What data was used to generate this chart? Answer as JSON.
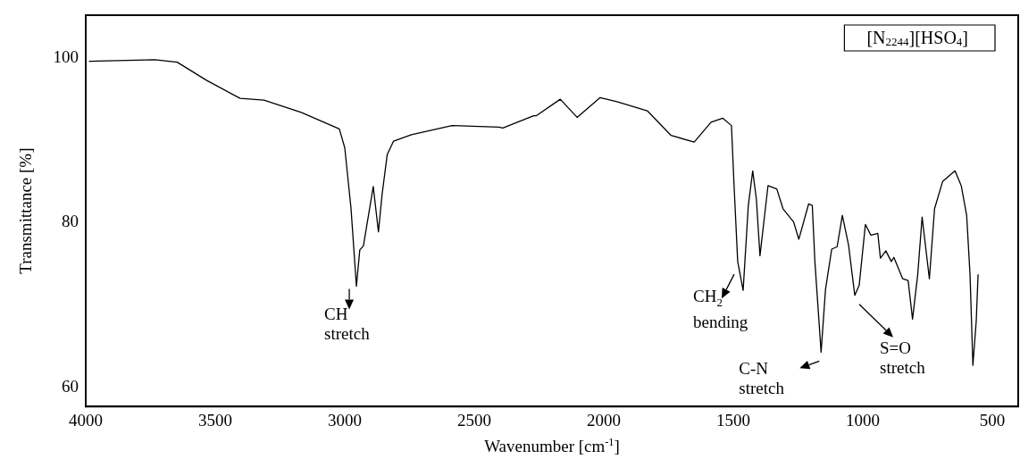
{
  "chart_data": {
    "type": "line",
    "xlabel": "Wavenumber [cm$^{-1}$]",
    "ylabel": "Transmittance [%]",
    "xlim": [
      4000,
      400
    ],
    "xticks": [
      4000,
      3500,
      3000,
      2500,
      2000,
      1500,
      1000,
      500
    ],
    "ylim": [
      57.5,
      105
    ],
    "yticks": [
      60,
      80,
      100
    ],
    "grid": false,
    "legend": "top right",
    "marker": "none",
    "line_style": "solid",
    "series": [
      {
        "name": "[N$_{2244}$][HSO$_{4}$]",
        "color": "#000000",
        "x": [
          3986,
          3733,
          3647,
          3534,
          3404,
          3312,
          3168,
          3021,
          3000,
          2976,
          2955,
          2942,
          2928,
          2890,
          2870,
          2856,
          2836,
          2812,
          2743,
          2586,
          2404,
          2390,
          2271,
          2260,
          2168,
          2103,
          2014,
          1949,
          1832,
          1740,
          1651,
          1586,
          1541,
          1507,
          1497,
          1483,
          1462,
          1442,
          1425,
          1411,
          1397,
          1366,
          1332,
          1308,
          1267,
          1247,
          1209,
          1195,
          1185,
          1161,
          1144,
          1120,
          1099,
          1079,
          1055,
          1031,
          1014,
          990,
          969,
          942,
          932,
          911,
          890,
          880,
          846,
          825,
          808,
          788,
          771,
          743,
          723,
          692,
          644,
          620,
          599,
          586,
          575,
          562,
          555
        ],
        "values": [
          99.4,
          99.6,
          99.3,
          97.1,
          94.9,
          94.7,
          93.2,
          91.2,
          88.9,
          81.6,
          72.1,
          76.5,
          77.0,
          84.2,
          78.7,
          83.2,
          88.1,
          89.7,
          90.5,
          91.6,
          91.4,
          91.3,
          92.8,
          92.8,
          94.8,
          92.6,
          95.0,
          94.5,
          93.4,
          90.4,
          89.6,
          92.0,
          92.5,
          91.6,
          84.3,
          75.1,
          71.6,
          81.9,
          86.1,
          82.7,
          75.8,
          84.3,
          83.9,
          81.5,
          79.9,
          77.8,
          82.1,
          81.9,
          75.1,
          64.1,
          71.7,
          76.6,
          76.9,
          80.7,
          77.1,
          71.0,
          72.2,
          79.6,
          78.3,
          78.5,
          75.5,
          76.4,
          75.1,
          75.6,
          73.0,
          72.8,
          68.1,
          73.5,
          80.5,
          73.0,
          81.5,
          84.8,
          86.1,
          84.3,
          80.7,
          73.5,
          62.5,
          67.9,
          73.5
        ]
      }
    ],
    "annotations": [
      {
        "text": "CH\nstretch",
        "x": 2955,
        "y": 72.1
      },
      {
        "text": "CH$_{2}$\nbending",
        "x": 1462,
        "y": 71.6
      },
      {
        "text": "C-N\nstretch",
        "x": 1161,
        "y": 64.1
      },
      {
        "text": "S=O\nstretch",
        "x": 1031,
        "y": 71.0
      }
    ]
  }
}
